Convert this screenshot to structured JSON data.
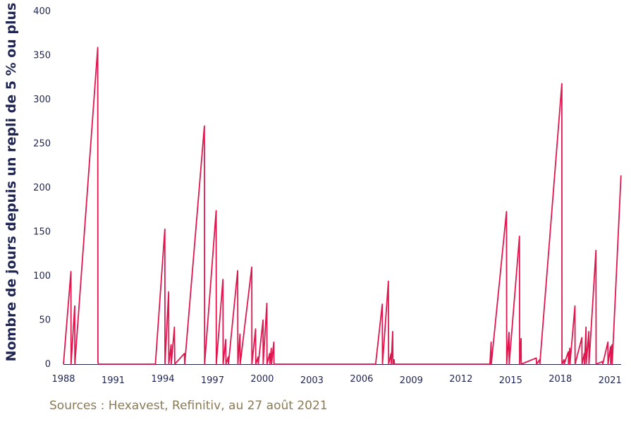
{
  "chart_data": {
    "type": "line",
    "title": "",
    "xlabel": "",
    "ylabel": "Nombre de jours depuis un repli de 5 % ou plus",
    "ylim": [
      0,
      400
    ],
    "yticks": [
      0,
      50,
      100,
      150,
      200,
      250,
      300,
      350,
      400
    ],
    "xlim": [
      1988.0,
      2021.67
    ],
    "xticks": [
      1988,
      1991,
      1994,
      1997,
      2000,
      2003,
      2006,
      2009,
      2012,
      2015,
      2018,
      2021
    ],
    "grid": false,
    "colors": {
      "line": "#e0174f",
      "text": "#1f2552",
      "source": "#8a7a55"
    },
    "series": [
      {
        "points": [
          [
            1988.0,
            0
          ],
          [
            1988.45,
            105
          ],
          [
            1988.46,
            0
          ],
          [
            1988.68,
            66
          ],
          [
            1988.69,
            0
          ],
          [
            1990.07,
            359
          ],
          [
            1990.08,
            2
          ],
          [
            1990.12,
            0
          ],
          [
            1993.55,
            0
          ],
          [
            1994.12,
            153
          ],
          [
            1994.13,
            0
          ],
          [
            1994.35,
            82
          ],
          [
            1994.36,
            0
          ],
          [
            1994.5,
            22
          ],
          [
            1994.51,
            0
          ],
          [
            1994.7,
            42
          ],
          [
            1994.72,
            0
          ],
          [
            1995.3,
            12
          ],
          [
            1995.32,
            0
          ],
          [
            1996.51,
            270
          ],
          [
            1996.52,
            0
          ],
          [
            1997.22,
            174
          ],
          [
            1997.23,
            0
          ],
          [
            1997.63,
            96
          ],
          [
            1997.64,
            0
          ],
          [
            1997.8,
            28
          ],
          [
            1997.81,
            0
          ],
          [
            1997.95,
            8
          ],
          [
            1997.96,
            0
          ],
          [
            1998.52,
            106
          ],
          [
            1998.53,
            0
          ],
          [
            1998.66,
            34
          ],
          [
            1998.67,
            0
          ],
          [
            1999.37,
            110
          ],
          [
            1999.38,
            0
          ],
          [
            1999.6,
            40
          ],
          [
            1999.61,
            0
          ],
          [
            1999.75,
            8
          ],
          [
            1999.76,
            0
          ],
          [
            2000.05,
            50
          ],
          [
            2000.06,
            0
          ],
          [
            2000.28,
            69
          ],
          [
            2000.29,
            0
          ],
          [
            2000.45,
            12
          ],
          [
            2000.46,
            0
          ],
          [
            2000.55,
            18
          ],
          [
            2000.56,
            0
          ],
          [
            2000.7,
            25
          ],
          [
            2000.71,
            0
          ],
          [
            2006.85,
            0
          ],
          [
            2007.25,
            68
          ],
          [
            2007.26,
            0
          ],
          [
            2007.62,
            94
          ],
          [
            2007.63,
            0
          ],
          [
            2007.78,
            12
          ],
          [
            2007.79,
            0
          ],
          [
            2007.88,
            37
          ],
          [
            2007.89,
            0
          ],
          [
            2007.97,
            5
          ],
          [
            2007.98,
            0
          ],
          [
            2013.75,
            0
          ],
          [
            2013.82,
            25
          ],
          [
            2013.83,
            0
          ],
          [
            2014.75,
            173
          ],
          [
            2014.76,
            0
          ],
          [
            2014.9,
            36
          ],
          [
            2014.91,
            0
          ],
          [
            2015.53,
            145
          ],
          [
            2015.54,
            0
          ],
          [
            2015.63,
            29
          ],
          [
            2015.64,
            0
          ],
          [
            2016.55,
            7
          ],
          [
            2016.56,
            0
          ],
          [
            2016.75,
            5
          ],
          [
            2016.76,
            0
          ],
          [
            2018.09,
            318
          ],
          [
            2018.1,
            0
          ],
          [
            2018.22,
            5
          ],
          [
            2018.23,
            0
          ],
          [
            2018.48,
            14
          ],
          [
            2018.49,
            0
          ],
          [
            2018.57,
            18
          ],
          [
            2018.58,
            0
          ],
          [
            2018.88,
            66
          ],
          [
            2018.89,
            0
          ],
          [
            2019.3,
            30
          ],
          [
            2019.31,
            0
          ],
          [
            2019.45,
            12
          ],
          [
            2019.46,
            0
          ],
          [
            2019.55,
            42
          ],
          [
            2019.56,
            0
          ],
          [
            2019.72,
            37
          ],
          [
            2019.73,
            0
          ],
          [
            2020.15,
            129
          ],
          [
            2020.16,
            0
          ],
          [
            2020.55,
            3
          ],
          [
            2020.56,
            0
          ],
          [
            2020.87,
            25
          ],
          [
            2020.88,
            0
          ],
          [
            2021.03,
            20
          ],
          [
            2021.04,
            0
          ],
          [
            2021.12,
            22
          ],
          [
            2021.13,
            0
          ],
          [
            2021.66,
            214
          ]
        ]
      }
    ]
  },
  "source": "Sources : Hexavest, Refinitiv, au 27 août 2021"
}
